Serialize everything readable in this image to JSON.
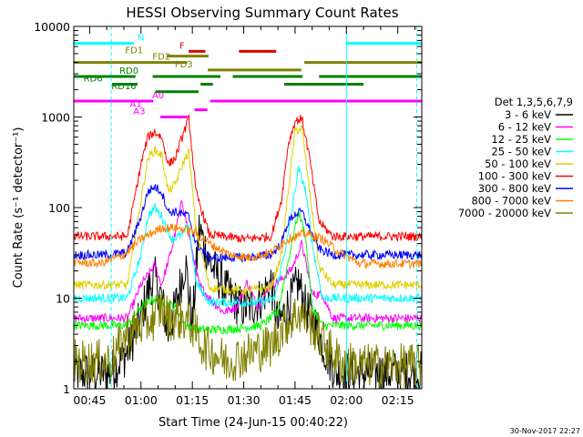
{
  "chart_data": {
    "type": "line",
    "title": "HESSI Observing Summary Count Rates",
    "xlabel": "Start Time (24-Jun-15 00:40:22)",
    "ylabel": "Count Rate (s⁻¹ detector⁻¹)",
    "yscale": "log",
    "ylim": [
      1,
      10000
    ],
    "xlim_minutes": [
      40.37,
      142.0
    ],
    "x_ticks": [
      {
        "label": "00:45",
        "minute": 45
      },
      {
        "label": "01:00",
        "minute": 60
      },
      {
        "label": "01:15",
        "minute": 75
      },
      {
        "label": "01:30",
        "minute": 90
      },
      {
        "label": "01:45",
        "minute": 105
      },
      {
        "label": "02:00",
        "minute": 120
      },
      {
        "label": "02:15",
        "minute": 135
      }
    ],
    "y_ticks": [
      {
        "label": "1",
        "value": 1
      },
      {
        "label": "10",
        "value": 10
      },
      {
        "label": "100",
        "value": 100
      },
      {
        "label": "1000",
        "value": 1000
      },
      {
        "label": "10000",
        "value": 10000
      }
    ],
    "legend_title": "Det 1,3,5,6,7,9",
    "legend_position": "right",
    "series": [
      {
        "name": "3 - 6 keV",
        "color": "#000000",
        "points": [
          [
            40.4,
            1.5
          ],
          [
            51,
            1.5
          ],
          [
            56,
            2.5
          ],
          [
            60,
            6
          ],
          [
            62,
            12
          ],
          [
            64,
            17
          ],
          [
            66,
            10
          ],
          [
            68,
            4
          ],
          [
            70,
            8
          ],
          [
            73,
            25
          ],
          [
            75,
            5
          ],
          [
            77,
            60
          ],
          [
            80,
            25
          ],
          [
            85,
            12
          ],
          [
            89,
            8
          ],
          [
            92,
            8
          ],
          [
            95,
            10
          ],
          [
            98,
            15
          ],
          [
            100,
            5
          ],
          [
            104,
            10
          ],
          [
            106,
            15
          ],
          [
            108,
            8
          ],
          [
            111,
            5
          ],
          [
            114,
            2.5
          ],
          [
            117,
            1.5
          ],
          [
            142,
            1.5
          ]
        ]
      },
      {
        "name": "6 - 12 keV",
        "color": "#ff00ff",
        "points": [
          [
            40.4,
            6
          ],
          [
            51,
            6
          ],
          [
            56,
            6
          ],
          [
            60,
            14
          ],
          [
            64,
            23
          ],
          [
            66,
            14
          ],
          [
            69,
            35
          ],
          [
            72,
            120
          ],
          [
            74,
            50
          ],
          [
            77,
            14
          ],
          [
            80,
            10
          ],
          [
            84,
            7
          ],
          [
            88,
            8
          ],
          [
            91,
            15
          ],
          [
            94,
            8
          ],
          [
            98,
            14
          ],
          [
            101,
            16
          ],
          [
            104,
            21
          ],
          [
            107,
            40
          ],
          [
            110,
            11
          ],
          [
            113,
            11
          ],
          [
            116,
            6
          ],
          [
            124,
            6
          ],
          [
            142,
            6
          ]
        ]
      },
      {
        "name": "12 - 25 keV",
        "color": "#00ff00",
        "points": [
          [
            40.4,
            5
          ],
          [
            51,
            5
          ],
          [
            56,
            5
          ],
          [
            60,
            8
          ],
          [
            64,
            10
          ],
          [
            66,
            9
          ],
          [
            70,
            8
          ],
          [
            73,
            5
          ],
          [
            77,
            4.5
          ],
          [
            85,
            4.5
          ],
          [
            95,
            5
          ],
          [
            100,
            7
          ],
          [
            104,
            40
          ],
          [
            106,
            90
          ],
          [
            108,
            50
          ],
          [
            110,
            8
          ],
          [
            113,
            5
          ],
          [
            124,
            5
          ],
          [
            142,
            5
          ]
        ]
      },
      {
        "name": "25 - 50 keV",
        "color": "#00ffff",
        "points": [
          [
            40.4,
            10
          ],
          [
            51,
            10
          ],
          [
            56,
            10
          ],
          [
            60,
            30
          ],
          [
            62,
            80
          ],
          [
            64,
            100
          ],
          [
            66,
            80
          ],
          [
            69,
            45
          ],
          [
            72,
            50
          ],
          [
            74,
            65
          ],
          [
            76,
            15
          ],
          [
            80,
            9
          ],
          [
            85,
            9
          ],
          [
            95,
            9
          ],
          [
            99,
            10
          ],
          [
            103,
            50
          ],
          [
            106,
            270
          ],
          [
            108,
            160
          ],
          [
            110,
            40
          ],
          [
            113,
            10
          ],
          [
            124,
            10
          ],
          [
            142,
            10
          ]
        ]
      },
      {
        "name": "50 - 100 keV",
        "color": "#e0d000",
        "points": [
          [
            40.4,
            14
          ],
          [
            51,
            14
          ],
          [
            56,
            14
          ],
          [
            60,
            120
          ],
          [
            62,
            350
          ],
          [
            64,
            430
          ],
          [
            66,
            380
          ],
          [
            68,
            150
          ],
          [
            70,
            180
          ],
          [
            72,
            290
          ],
          [
            74,
            420
          ],
          [
            76,
            60
          ],
          [
            80,
            13
          ],
          [
            90,
            12
          ],
          [
            98,
            13
          ],
          [
            101,
            30
          ],
          [
            103,
            150
          ],
          [
            105,
            700
          ],
          [
            107,
            750
          ],
          [
            109,
            180
          ],
          [
            112,
            22
          ],
          [
            116,
            14
          ],
          [
            124,
            14
          ],
          [
            142,
            14
          ]
        ]
      },
      {
        "name": "100 - 300 keV",
        "color": "#ff0000",
        "points": [
          [
            40.4,
            48
          ],
          [
            51,
            48
          ],
          [
            56,
            48
          ],
          [
            60,
            300
          ],
          [
            62,
            600
          ],
          [
            64,
            680
          ],
          [
            66,
            600
          ],
          [
            68,
            300
          ],
          [
            70,
            350
          ],
          [
            72,
            600
          ],
          [
            74,
            970
          ],
          [
            76,
            150
          ],
          [
            80,
            50
          ],
          [
            90,
            45
          ],
          [
            98,
            48
          ],
          [
            101,
            120
          ],
          [
            103,
            500
          ],
          [
            105,
            900
          ],
          [
            107,
            960
          ],
          [
            109,
            400
          ],
          [
            112,
            70
          ],
          [
            116,
            48
          ],
          [
            124,
            48
          ],
          [
            142,
            48
          ]
        ]
      },
      {
        "name": "300 - 800 keV",
        "color": "#0000ff",
        "points": [
          [
            40.4,
            30
          ],
          [
            51,
            30
          ],
          [
            56,
            32
          ],
          [
            60,
            80
          ],
          [
            62,
            150
          ],
          [
            64,
            170
          ],
          [
            66,
            150
          ],
          [
            68,
            90
          ],
          [
            70,
            90
          ],
          [
            72,
            85
          ],
          [
            74,
            80
          ],
          [
            76,
            40
          ],
          [
            80,
            28
          ],
          [
            90,
            28
          ],
          [
            98,
            30
          ],
          [
            101,
            40
          ],
          [
            103,
            70
          ],
          [
            105,
            85
          ],
          [
            107,
            90
          ],
          [
            109,
            60
          ],
          [
            112,
            35
          ],
          [
            116,
            30
          ],
          [
            124,
            30
          ],
          [
            142,
            30
          ]
        ]
      },
      {
        "name": "800 - 7000 keV",
        "color": "#ff8000",
        "points": [
          [
            40.4,
            25
          ],
          [
            48,
            24
          ],
          [
            55,
            30
          ],
          [
            60,
            45
          ],
          [
            66,
            60
          ],
          [
            70,
            60
          ],
          [
            75,
            55
          ],
          [
            80,
            40
          ],
          [
            86,
            30
          ],
          [
            92,
            28
          ],
          [
            98,
            32
          ],
          [
            103,
            45
          ],
          [
            108,
            52
          ],
          [
            113,
            45
          ],
          [
            118,
            32
          ],
          [
            124,
            24
          ],
          [
            142,
            24
          ]
        ]
      },
      {
        "name": "7000 - 20000 keV",
        "color": "#808000",
        "points": [
          [
            40.4,
            2
          ],
          [
            51,
            2
          ],
          [
            56,
            4
          ],
          [
            60,
            5
          ],
          [
            64,
            6
          ],
          [
            66,
            8
          ],
          [
            68,
            6
          ],
          [
            72,
            6
          ],
          [
            75,
            5
          ],
          [
            78,
            3
          ],
          [
            85,
            2
          ],
          [
            92,
            2.5
          ],
          [
            98,
            3
          ],
          [
            102,
            5
          ],
          [
            106,
            7
          ],
          [
            110,
            5
          ],
          [
            114,
            3
          ],
          [
            118,
            2
          ],
          [
            124,
            1.8
          ],
          [
            142,
            1.8
          ]
        ]
      }
    ],
    "mode_bars": [
      {
        "label": "N",
        "label_color": "#00ffff",
        "color": "#00ffff",
        "y": 6500,
        "label_minute": 60,
        "intervals": [
          [
            40.4,
            57.9
          ],
          [
            120.0,
            142.0
          ]
        ]
      },
      {
        "label": "F",
        "label_color": "#e00000",
        "color": "#e00000",
        "y": 5300,
        "label_minute": 72,
        "intervals": [
          [
            73.9,
            78.8
          ],
          [
            88.6,
            99.5
          ]
        ]
      },
      {
        "label": "FD1",
        "label_color": "#808000",
        "color": "#808000",
        "y": 4700,
        "label_minute": 58,
        "intervals": [
          [
            67.5,
            79.7
          ]
        ]
      },
      {
        "label": "FD2",
        "label_color": "#808000",
        "color": "#808000",
        "y": 4000,
        "label_minute": 66,
        "intervals": [
          [
            40.4,
            73.5
          ],
          [
            107.7,
            142.0
          ]
        ]
      },
      {
        "label": "FD3",
        "label_color": "#808000",
        "color": "#808000",
        "y": 3300,
        "label_minute": 72.5,
        "intervals": [
          [
            79.5,
            106.8
          ]
        ]
      },
      {
        "label": "RD0",
        "label_color": "#008000",
        "color": "#008000",
        "y": 2800,
        "label_minute": 56.5,
        "intervals": [
          [
            40.4,
            58.4
          ],
          [
            63.4,
            83.2
          ],
          [
            86.8,
            107.2
          ],
          [
            112.0,
            142.0
          ]
        ]
      },
      {
        "label": "RD6",
        "label_color": "#008000",
        "color": "#008000",
        "y": 2300,
        "label_minute": 46,
        "intervals": [
          [
            51.6,
            59.0
          ],
          [
            77.4,
            81.0
          ],
          [
            101.8,
            125.0
          ]
        ]
      },
      {
        "label": "RD16",
        "label_color": "#008000",
        "color": "#008000",
        "y": 1900,
        "label_minute": 55,
        "intervals": [
          [
            64.2,
            76.8
          ]
        ]
      },
      {
        "label": "A0",
        "label_color": "#ff00ff",
        "color": "#ff00ff",
        "y": 1500,
        "label_minute": 65,
        "intervals": [
          [
            40.4,
            63.6
          ],
          [
            80.2,
            142.0
          ]
        ]
      },
      {
        "label": "A1",
        "label_color": "#ff00ff",
        "color": "#ff00ff",
        "y": 1200,
        "label_minute": 58.5,
        "intervals": [
          [
            75.6,
            79.4
          ]
        ]
      },
      {
        "label": "A3",
        "label_color": "#ff00ff",
        "color": "#ff00ff",
        "y": 1000,
        "label_minute": 59.5,
        "intervals": [
          [
            65.6,
            73.5
          ]
        ]
      }
    ],
    "vlines": [
      {
        "minute": 51.3,
        "color": "#00ffff",
        "dashed": true
      },
      {
        "minute": 120.0,
        "color": "#00ffff",
        "dashed": false
      },
      {
        "minute": 140.5,
        "color": "#00ffff",
        "dashed": true
      }
    ]
  },
  "footer": {
    "timestamp": "30-Nov-2017 22:27"
  }
}
